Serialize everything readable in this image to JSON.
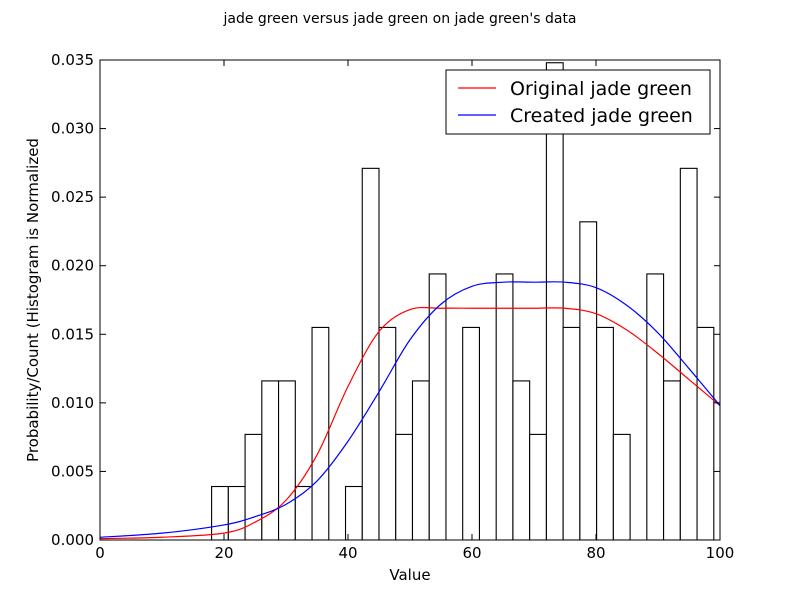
{
  "chart_data": {
    "type": "bar",
    "title": "jade green versus jade green on jade green's data",
    "xlabel": "Value",
    "ylabel": "Probability/Count (Histogram is Normalized",
    "xlim": [
      0,
      100
    ],
    "ylim": [
      0,
      0.035
    ],
    "x_ticks": [
      0,
      20,
      40,
      60,
      80,
      100
    ],
    "x_tick_labels": [
      "0",
      "20",
      "40",
      "60",
      "80",
      "100"
    ],
    "y_ticks": [
      0,
      0.005,
      0.01,
      0.015,
      0.02,
      0.025,
      0.03,
      0.035
    ],
    "y_tick_labels": [
      "0.000",
      "0.005",
      "0.010",
      "0.015",
      "0.020",
      "0.025",
      "0.030",
      "0.035"
    ],
    "grid": false,
    "legend_position": "top-right",
    "histogram": {
      "bin_width": 2.7,
      "bins": [
        {
          "x0": 18.0,
          "value": 0.0039
        },
        {
          "x0": 20.7,
          "value": 0.0039
        },
        {
          "x0": 23.4,
          "value": 0.0077
        },
        {
          "x0": 26.1,
          "value": 0.0116
        },
        {
          "x0": 28.8,
          "value": 0.0116
        },
        {
          "x0": 31.5,
          "value": 0.0039
        },
        {
          "x0": 34.2,
          "value": 0.0155
        },
        {
          "x0": 36.9,
          "value": 0.0
        },
        {
          "x0": 39.6,
          "value": 0.0039
        },
        {
          "x0": 42.3,
          "value": 0.0271
        },
        {
          "x0": 45.0,
          "value": 0.0155
        },
        {
          "x0": 47.7,
          "value": 0.0077
        },
        {
          "x0": 50.4,
          "value": 0.0116
        },
        {
          "x0": 53.1,
          "value": 0.0194
        },
        {
          "x0": 55.8,
          "value": 0.0
        },
        {
          "x0": 58.5,
          "value": 0.0155
        },
        {
          "x0": 61.2,
          "value": 0.0
        },
        {
          "x0": 63.9,
          "value": 0.0194
        },
        {
          "x0": 66.6,
          "value": 0.0116
        },
        {
          "x0": 69.3,
          "value": 0.0077
        },
        {
          "x0": 72.0,
          "value": 0.0348
        },
        {
          "x0": 74.7,
          "value": 0.0155
        },
        {
          "x0": 77.4,
          "value": 0.0232
        },
        {
          "x0": 80.1,
          "value": 0.0155
        },
        {
          "x0": 82.8,
          "value": 0.0077
        },
        {
          "x0": 85.5,
          "value": 0.0
        },
        {
          "x0": 88.2,
          "value": 0.0194
        },
        {
          "x0": 90.9,
          "value": 0.0116
        },
        {
          "x0": 93.6,
          "value": 0.0271
        },
        {
          "x0": 96.3,
          "value": 0.0155
        }
      ]
    },
    "series": [
      {
        "name": "Original jade green",
        "color": "#ff0000",
        "type": "line",
        "x": [
          0,
          10,
          20,
          25,
          30,
          35,
          40,
          45,
          50,
          55,
          60,
          65,
          70,
          75,
          80,
          85,
          90,
          95,
          100
        ],
        "y": [
          0.0001,
          0.0002,
          0.0005,
          0.0013,
          0.0029,
          0.0062,
          0.0112,
          0.0152,
          0.0168,
          0.0169,
          0.0169,
          0.0169,
          0.0169,
          0.0169,
          0.0165,
          0.0153,
          0.0136,
          0.0117,
          0.0098
        ]
      },
      {
        "name": "Created jade green",
        "color": "#0000ff",
        "type": "line",
        "x": [
          0,
          10,
          20,
          25,
          30,
          35,
          40,
          45,
          50,
          55,
          60,
          65,
          70,
          75,
          80,
          85,
          90,
          95,
          100
        ],
        "y": [
          0.0002,
          0.0005,
          0.0011,
          0.0017,
          0.0026,
          0.0043,
          0.0072,
          0.0108,
          0.0146,
          0.0172,
          0.0185,
          0.0188,
          0.0188,
          0.0188,
          0.0184,
          0.0171,
          0.0151,
          0.0125,
          0.0098
        ]
      }
    ]
  }
}
